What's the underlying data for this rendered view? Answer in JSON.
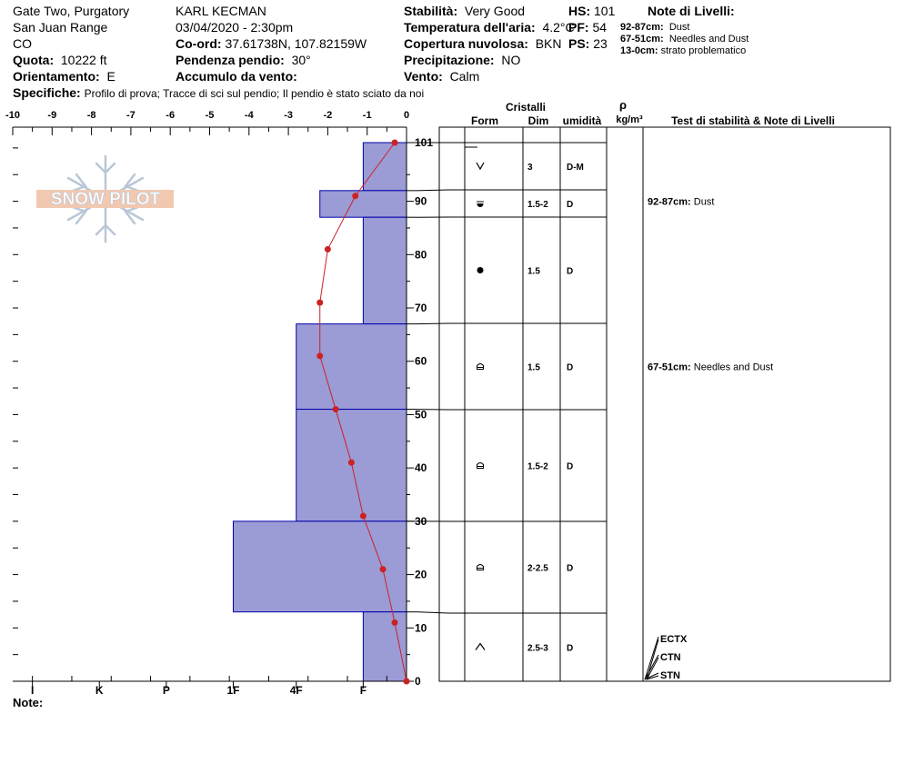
{
  "header": {
    "location_line1": "Gate Two, Purgatory",
    "location_line2": "San Juan Range",
    "location_line3": "CO",
    "elevation_label": "Quota:",
    "elevation_value": "10222 ft",
    "aspect_label": "Orientamento:",
    "aspect_value": "E",
    "observer": "KARL KECMAN",
    "datetime": "03/04/2020 - 2:30pm",
    "coords_label": "Co-ord:",
    "coords_value": "37.61738N, 107.82159W",
    "slope_label": "Pendenza pendio:",
    "slope_value": "30°",
    "wind_loading_label": "Accumulo da vento:",
    "wind_loading_value": "",
    "stability_label": "Stabilità:",
    "stability_value": "Very Good",
    "air_temp_label": "Temperatura dell'aria:",
    "air_temp_value": "4.2°C",
    "sky_label": "Copertura nuvolosa:",
    "sky_value": "BKN",
    "precip_label": "Precipitazione:",
    "precip_value": "NO",
    "wind_label": "Vento:",
    "wind_value": "Calm",
    "hs_label": "HS:",
    "hs_value": "101",
    "pf_label": "PF:",
    "pf_value": "54",
    "ps_label": "PS:",
    "ps_value": "23",
    "layer_notes_title": "Note di Livelli:",
    "layer_notes": [
      {
        "range": "92-87cm:",
        "text": "Dust"
      },
      {
        "range": "67-51cm:",
        "text": "Needles and Dust"
      },
      {
        "range": "13-0cm:",
        "text": "strato problematico"
      }
    ],
    "specifics_label": "Specifiche:",
    "specifics_value": "Profilo di prova;  Tracce di sci sul pendio;  Il pendio è stato sciato da noi"
  },
  "logo_text": "SNOW PILOT",
  "note_label": "Note:",
  "columns": {
    "crystals": "Cristalli",
    "form": "Form",
    "size": "Dim",
    "moisture": "umidità",
    "rho": "ρ",
    "density_unit": "kg/m³",
    "stability_notes": "Test di stabilità & Note di Livelli"
  },
  "chart_data": {
    "type": "bar",
    "orientation": "horizontal",
    "x_ticks": [
      "-10",
      "-9",
      "-8",
      "-7",
      "-6",
      "-5",
      "-4",
      "-3",
      "-2",
      "-1",
      "0"
    ],
    "xlim": [
      -10,
      0
    ],
    "y_ticks": [
      "101",
      "90",
      "80",
      "70",
      "60",
      "50",
      "40",
      "30",
      "20",
      "10",
      "0"
    ],
    "ylim": [
      0,
      101
    ],
    "hardness_ticks": [
      "I",
      "K",
      "P",
      "1F",
      "4F",
      "F"
    ],
    "layers": [
      {
        "top": 101,
        "bottom": 92,
        "hardness": -1.1,
        "form": "V",
        "size": "3",
        "moisture": "D-M"
      },
      {
        "top": 92,
        "bottom": 87,
        "hardness": -2.2,
        "form": "dust",
        "size": "1.5-2",
        "moisture": "D"
      },
      {
        "top": 87,
        "bottom": 67,
        "hardness": -1.1,
        "form": "dot",
        "size": "1.5",
        "moisture": "D"
      },
      {
        "top": 67,
        "bottom": 51,
        "hardness": -2.8,
        "form": "box",
        "size": "1.5",
        "moisture": "D"
      },
      {
        "top": 51,
        "bottom": 30,
        "hardness": -2.8,
        "form": "box",
        "size": "1.5-2",
        "moisture": "D"
      },
      {
        "top": 30,
        "bottom": 13,
        "hardness": -4.4,
        "form": "box",
        "size": "2-2.5",
        "moisture": "D"
      },
      {
        "top": 13,
        "bottom": 0,
        "hardness": -1.1,
        "form": "caret",
        "size": "2.5-3",
        "moisture": "D"
      }
    ],
    "temperature_profile": [
      {
        "depth": 101,
        "temp": -0.3
      },
      {
        "depth": 91,
        "temp": -1.3
      },
      {
        "depth": 81,
        "temp": -2.0
      },
      {
        "depth": 71,
        "temp": -2.2
      },
      {
        "depth": 61,
        "temp": -2.2
      },
      {
        "depth": 51,
        "temp": -1.8
      },
      {
        "depth": 41,
        "temp": -1.4
      },
      {
        "depth": 31,
        "temp": -1.1
      },
      {
        "depth": 21,
        "temp": -0.6
      },
      {
        "depth": 11,
        "temp": -0.3
      },
      {
        "depth": 0,
        "temp": 0.0
      }
    ],
    "stability_tests": [
      "ECTX",
      "CTN",
      "STN"
    ],
    "layer_annotations": [
      {
        "depth": 90,
        "range": "92-87cm:",
        "text": "Dust"
      },
      {
        "depth": 59,
        "range": "67-51cm:",
        "text": "Needles and Dust"
      }
    ],
    "colors": {
      "layer_fill": "#9b9bd6",
      "layer_stroke": "#0000aa",
      "temp_line": "#cc2222"
    }
  }
}
